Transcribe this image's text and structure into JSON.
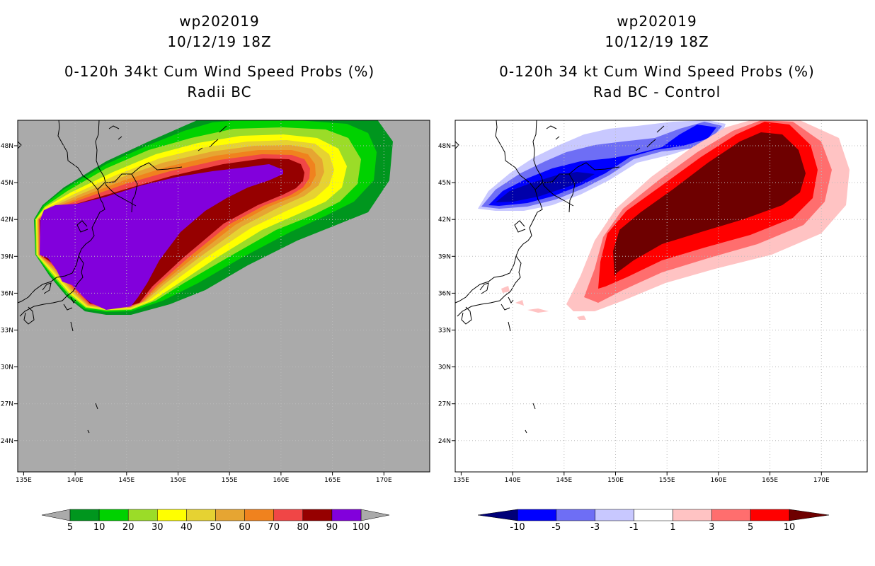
{
  "panels": [
    {
      "title_line1": "wp202019",
      "title_line2": "10/12/19 18Z",
      "title_line3": "0-120h 34kt Cum Wind Speed Probs (%)",
      "title_line4": "Radii BC"
    },
    {
      "title_line1": "wp202019",
      "title_line2": "10/12/19 18Z",
      "title_line3": "0-120h 34 kt Cum Wind Speed Probs (%)",
      "title_line4": "Rad BC - Control"
    }
  ],
  "map_axes": {
    "lon_ticks": [
      "135E",
      "140E",
      "145E",
      "150E",
      "155E",
      "160E",
      "165E",
      "170E"
    ],
    "lat_ticks": [
      "48N",
      "45N",
      "42N",
      "39N",
      "36N",
      "33N",
      "30N",
      "27N",
      "24N"
    ],
    "lon_range": [
      134.5,
      174.5
    ],
    "lat_range": [
      21.0,
      49.5
    ]
  },
  "colorbar_left": {
    "labels": [
      "5",
      "10",
      "20",
      "30",
      "40",
      "50",
      "60",
      "70",
      "80",
      "90",
      "100"
    ],
    "colors": [
      "#00961e",
      "#00d200",
      "#9bdc28",
      "#ffff00",
      "#e6d232",
      "#e6a532",
      "#f0821e",
      "#f04646",
      "#960000",
      "#8200dc"
    ],
    "extend_color": "#aaaaaa"
  },
  "colorbar_right": {
    "labels": [
      "-10",
      "-5",
      "-3",
      "-1",
      "1",
      "3",
      "5",
      "10"
    ],
    "colors": [
      "#0000aa",
      "#0000ff",
      "#6e6ef5",
      "#c8c8ff",
      "#ffffff",
      "#ffc3c3",
      "#ff6e6e",
      "#ff0000"
    ],
    "low_extend_color": "#000078",
    "high_extend_color": "#6e0000"
  }
}
